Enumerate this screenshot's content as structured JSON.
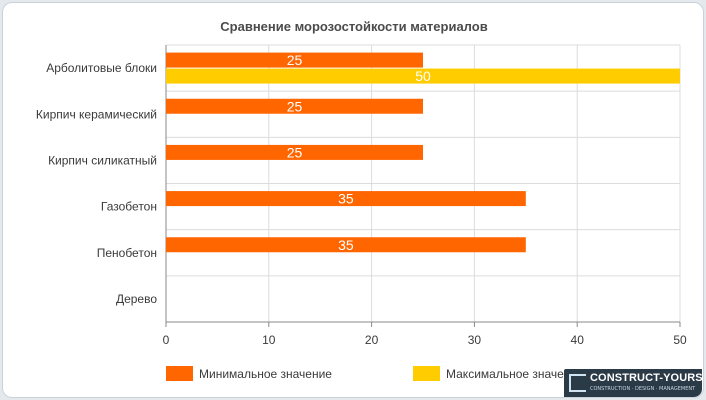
{
  "chart_data": {
    "type": "bar",
    "orientation": "horizontal",
    "title": "Сравнение морозостойкости материалов",
    "categories": [
      "Арболитовые блоки",
      "Кирпич керамический",
      "Кирпич силикатный",
      "Газобетон",
      "Пенобетон",
      "Дерево"
    ],
    "series": [
      {
        "name": "Минимальное значение",
        "color": "#ff6600",
        "values": [
          25,
          25,
          25,
          35,
          35,
          null
        ]
      },
      {
        "name": "Максимальное значение",
        "color": "#ffcc00",
        "values": [
          50,
          null,
          null,
          null,
          null,
          null
        ]
      }
    ],
    "xlim": [
      0,
      50
    ],
    "xticks": [
      0,
      10,
      20,
      30,
      40,
      50
    ],
    "grid": true,
    "legend": "bottom"
  },
  "watermark": {
    "name": "CONSTRUCT-YOURSELF",
    "tagline": "CONSTRUCTION · DESIGN · MANAGEMENT"
  }
}
